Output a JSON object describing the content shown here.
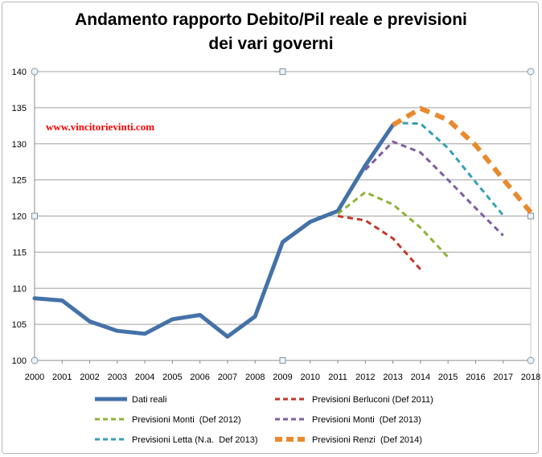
{
  "chart_data": {
    "type": "line",
    "title_line1": "Andamento rapporto Debito/Pil reale e previsioni",
    "title_line2": "dei vari governi",
    "watermark": "www.vincitorievinti.com",
    "xlabel": "",
    "ylabel": "",
    "x": [
      "2000",
      "2001",
      "2002",
      "2003",
      "2004",
      "2005",
      "2006",
      "2007",
      "2008",
      "2009",
      "2010",
      "2011",
      "2012",
      "2013",
      "2014",
      "2015",
      "2016",
      "2017",
      "2018"
    ],
    "ylim": [
      100,
      140
    ],
    "yticks": [
      100,
      105,
      110,
      115,
      120,
      125,
      130,
      135,
      140
    ],
    "grid": true,
    "legend_position": "bottom",
    "series": [
      {
        "name": "Dati reali",
        "color": "#4472a8",
        "style": "solid",
        "points": [
          [
            "2000",
            108.6
          ],
          [
            "2001",
            108.3
          ],
          [
            "2002",
            105.4
          ],
          [
            "2003",
            104.1
          ],
          [
            "2004",
            103.7
          ],
          [
            "2005",
            105.7
          ],
          [
            "2006",
            106.3
          ],
          [
            "2007",
            103.3
          ],
          [
            "2008",
            106.1
          ],
          [
            "2009",
            116.4
          ],
          [
            "2010",
            119.2
          ],
          [
            "2011",
            120.7
          ],
          [
            "2012",
            127.0
          ],
          [
            "2013",
            132.6
          ]
        ]
      },
      {
        "name": "Previsioni Berluconi (Def 2011)",
        "color": "#c0392b",
        "style": "dashed",
        "points": [
          [
            "2011",
            120.0
          ],
          [
            "2012",
            119.4
          ],
          [
            "2013",
            116.9
          ],
          [
            "2014",
            112.6
          ]
        ]
      },
      {
        "name": "Previsioni Monti  (Def 2012)",
        "color": "#8db33a",
        "style": "dashed",
        "points": [
          [
            "2011",
            120.3
          ],
          [
            "2012",
            123.3
          ],
          [
            "2013",
            121.6
          ],
          [
            "2014",
            118.4
          ],
          [
            "2015",
            114.3
          ]
        ]
      },
      {
        "name": "Previsioni Monti  (Def 2013)",
        "color": "#7d5f9f",
        "style": "dashed",
        "points": [
          [
            "2012",
            126.4
          ],
          [
            "2013",
            130.3
          ],
          [
            "2014",
            128.8
          ],
          [
            "2015",
            125.0
          ],
          [
            "2016",
            121.1
          ],
          [
            "2017",
            117.3
          ]
        ]
      },
      {
        "name": "Previsioni Letta (N.a.  Def 2013)",
        "color": "#35a0b5",
        "style": "dashed",
        "points": [
          [
            "2013",
            132.9
          ],
          [
            "2014",
            132.8
          ],
          [
            "2015",
            129.4
          ],
          [
            "2016",
            124.7
          ],
          [
            "2017",
            120.1
          ]
        ]
      },
      {
        "name": "Previsioni Renzi  (Def 2014)",
        "color": "#e98a2f",
        "style": "dashed-thick",
        "points": [
          [
            "2013",
            132.6
          ],
          [
            "2014",
            134.9
          ],
          [
            "2015",
            133.3
          ],
          [
            "2016",
            129.8
          ],
          [
            "2017",
            125.1
          ],
          [
            "2018",
            120.5
          ]
        ]
      }
    ]
  }
}
